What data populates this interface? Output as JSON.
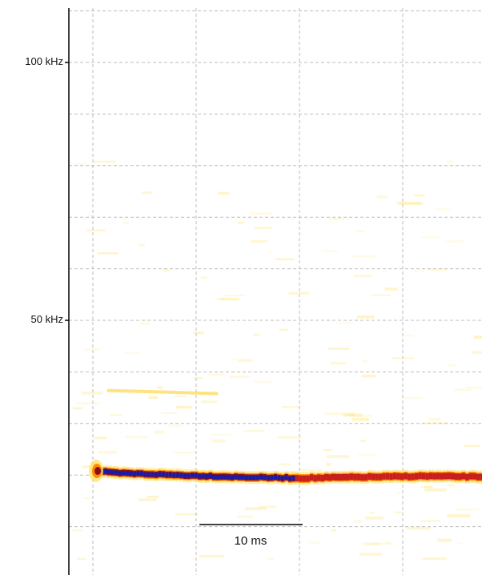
{
  "chart_data": {
    "type": "heatmap",
    "title": "",
    "xlabel": "",
    "ylabel": "",
    "y_unit": "kHz",
    "y_ticks": [
      {
        "value": 100,
        "label": "100 kHz"
      },
      {
        "value": 50,
        "label": "50 kHz"
      }
    ],
    "ylim": [
      0,
      110
    ],
    "xlim_ms": [
      0,
      40
    ],
    "grid": true,
    "scale_bar": {
      "length_ms": 10,
      "label": "10 ms"
    },
    "colormap": [
      "#fffbe0",
      "#ffe46a",
      "#ff8c00",
      "#c81e1e",
      "#8a1020",
      "#1a1aa8"
    ],
    "call": {
      "start_ms": 0.0,
      "end_ms": 40.0,
      "frequency_khz": [
        {
          "t_ms": 0.0,
          "khz": 20.8
        },
        {
          "t_ms": 2.0,
          "khz": 20.4
        },
        {
          "t_ms": 8.0,
          "khz": 20.0
        },
        {
          "t_ms": 14.0,
          "khz": 19.6
        },
        {
          "t_ms": 20.0,
          "khz": 19.4
        },
        {
          "t_ms": 26.0,
          "khz": 19.6
        },
        {
          "t_ms": 32.0,
          "khz": 19.8
        },
        {
          "t_ms": 40.0,
          "khz": 19.6
        }
      ],
      "intensity": [
        {
          "t_ms": 0.0,
          "level": 1.0
        },
        {
          "t_ms": 18.5,
          "level": 0.95
        },
        {
          "t_ms": 20.0,
          "level": 0.7
        },
        {
          "t_ms": 30.0,
          "level": 0.6
        },
        {
          "t_ms": 40.0,
          "level": 0.55
        }
      ],
      "harmonic": {
        "start_ms": 1.5,
        "end_ms": 12.0,
        "khz_start": 36.4,
        "khz_end": 35.8
      }
    }
  }
}
